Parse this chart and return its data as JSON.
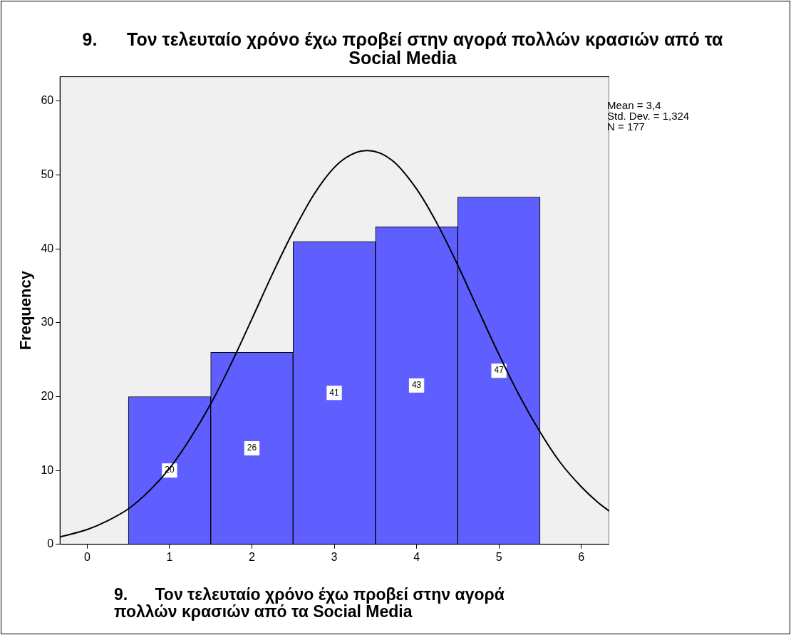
{
  "chart_data": {
    "type": "histogram",
    "title": "9.      Τον τελευταίο χρόνο έχω προβεί στην αγορά πολλών κρασιών από τα Social Media",
    "xlabel": "9.      Τον τελευταίο χρόνο έχω προβεί στην αγορά πολλών κρασιών από τα Social Media",
    "ylabel": "Frequency",
    "annotations": [
      "Mean = 3,4",
      "Std. Dev. = 1,324",
      "N = 177"
    ],
    "bins": [
      0.5,
      1.5,
      2.5,
      3.5,
      4.5,
      5.5
    ],
    "series": [
      {
        "type": "histogram",
        "color": "#5f5fff",
        "values": [
          20,
          26,
          41,
          43,
          47
        ],
        "value_labels": [
          "20",
          "26",
          "41",
          "43",
          "47"
        ]
      },
      {
        "type": "line",
        "color": "#000000",
        "x": [
          -0.33,
          0,
          0.25,
          0.5,
          0.75,
          1,
          1.25,
          1.5,
          1.75,
          2,
          2.25,
          2.5,
          2.75,
          3,
          3.2,
          3.4,
          3.7,
          4,
          4.25,
          4.5,
          4.75,
          5,
          5.25,
          5.5,
          5.75,
          6,
          6.2,
          6.34
        ],
        "values": [
          1,
          2,
          3.2,
          4.8,
          7.2,
          10.3,
          14.3,
          19,
          24.5,
          30.5,
          36.6,
          42.3,
          47.3,
          51,
          52.7,
          53.3,
          52,
          48.1,
          43.4,
          37.8,
          31.7,
          25.7,
          20.1,
          15.2,
          11,
          7.8,
          5.7,
          4.5
        ]
      }
    ],
    "grid": false,
    "legend": false,
    "marker": "none",
    "line_style": "solid",
    "xlim": [
      -0.33,
      6.34
    ],
    "xticks": [
      0,
      1,
      2,
      3,
      4,
      5,
      6
    ],
    "ylim": [
      0,
      63.3
    ],
    "yticks": [
      0,
      10,
      20,
      30,
      40,
      50,
      60
    ]
  }
}
